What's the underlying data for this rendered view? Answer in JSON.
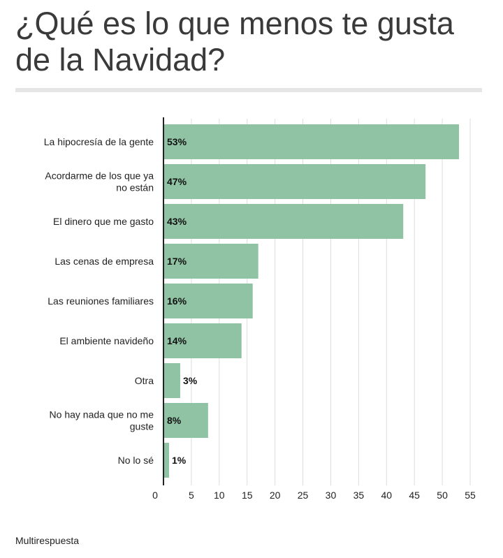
{
  "page": {
    "title": "¿Qué es lo que menos te gusta de la Navidad?",
    "footnote": "Multirespuesta"
  },
  "colors": {
    "bar": "#8fc3a3",
    "gridline": "#dddddd",
    "axis": "#222222"
  },
  "chart_data": {
    "type": "bar",
    "orientation": "horizontal",
    "title": "¿Qué es lo que menos te gusta de la Navidad?",
    "categories": [
      [
        "La hipocresía de la gente"
      ],
      [
        "Acordarme de los que ya",
        "no están"
      ],
      [
        "El dinero que me gasto"
      ],
      [
        "Las cenas de empresa"
      ],
      [
        "Las reuniones familiares"
      ],
      [
        "El ambiente navideño"
      ],
      [
        "Otra"
      ],
      [
        "No hay nada que no me",
        "guste"
      ],
      [
        "No lo sé"
      ]
    ],
    "values": [
      53,
      47,
      43,
      17,
      16,
      14,
      3,
      8,
      1
    ],
    "value_labels": [
      "53%",
      "47%",
      "43%",
      "17%",
      "16%",
      "14%",
      "3%",
      "8%",
      "1%"
    ],
    "xticks": [
      0,
      5,
      10,
      15,
      20,
      25,
      30,
      35,
      40,
      45,
      50,
      55
    ],
    "xlim": [
      0,
      55
    ],
    "grid": true,
    "xlabel": "",
    "ylabel": ""
  }
}
